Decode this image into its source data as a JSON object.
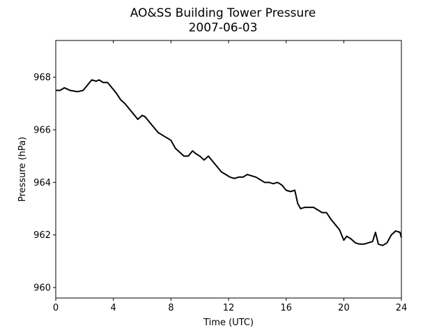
{
  "chart_data": {
    "type": "line",
    "title": "AO&SS Building Tower Pressure",
    "subtitle": "2007-06-03",
    "xlabel": "Time (UTC)",
    "ylabel": "Pressure (hPa)",
    "xlim": [
      0,
      24
    ],
    "ylim": [
      959.6,
      969.4
    ],
    "x_ticks": [
      0,
      4,
      8,
      12,
      16,
      20,
      24
    ],
    "y_ticks": [
      960,
      962,
      964,
      966,
      968
    ],
    "grid": false,
    "line_color": "#000000",
    "series": [
      {
        "x": [
          0.0,
          0.3,
          0.6,
          1.0,
          1.5,
          1.9,
          2.2,
          2.5,
          2.8,
          3.0,
          3.3,
          3.6,
          3.9,
          4.2,
          4.5,
          4.8,
          5.1,
          5.4,
          5.7,
          6.0,
          6.2,
          6.5,
          6.8,
          7.1,
          7.4,
          7.7,
          8.0,
          8.3,
          8.6,
          8.9,
          9.2,
          9.5,
          9.7,
          10.0,
          10.3,
          10.6,
          10.9,
          11.2,
          11.5,
          11.8,
          12.1,
          12.4,
          12.7,
          13.0,
          13.3,
          13.6,
          13.9,
          14.2,
          14.5,
          14.8,
          15.1,
          15.4,
          15.7,
          16.0,
          16.3,
          16.6,
          16.8,
          17.0,
          17.3,
          17.6,
          17.9,
          18.2,
          18.5,
          18.8,
          19.1,
          19.4,
          19.7,
          20.0,
          20.2,
          20.5,
          20.8,
          21.1,
          21.4,
          21.7,
          22.0,
          22.2,
          22.4,
          22.7,
          23.0,
          23.3,
          23.6,
          23.9,
          24.0
        ],
        "y": [
          967.5,
          967.5,
          967.6,
          967.5,
          967.45,
          967.5,
          967.7,
          967.9,
          967.85,
          967.9,
          967.8,
          967.8,
          967.6,
          967.4,
          967.15,
          967.0,
          966.8,
          966.6,
          966.4,
          966.55,
          966.5,
          966.3,
          966.1,
          965.9,
          965.8,
          965.7,
          965.6,
          965.3,
          965.15,
          965.0,
          965.0,
          965.2,
          965.1,
          965.0,
          964.85,
          965.0,
          964.8,
          964.6,
          964.4,
          964.3,
          964.2,
          964.15,
          964.2,
          964.2,
          964.3,
          964.25,
          964.2,
          964.1,
          964.0,
          964.0,
          963.95,
          964.0,
          963.9,
          963.7,
          963.65,
          963.7,
          963.2,
          963.0,
          963.05,
          963.05,
          963.05,
          962.95,
          962.85,
          962.85,
          962.6,
          962.4,
          962.2,
          961.8,
          961.95,
          961.85,
          961.7,
          961.65,
          961.65,
          961.7,
          961.75,
          962.1,
          961.65,
          961.6,
          961.7,
          962.0,
          962.15,
          962.1,
          961.9
        ]
      }
    ]
  }
}
